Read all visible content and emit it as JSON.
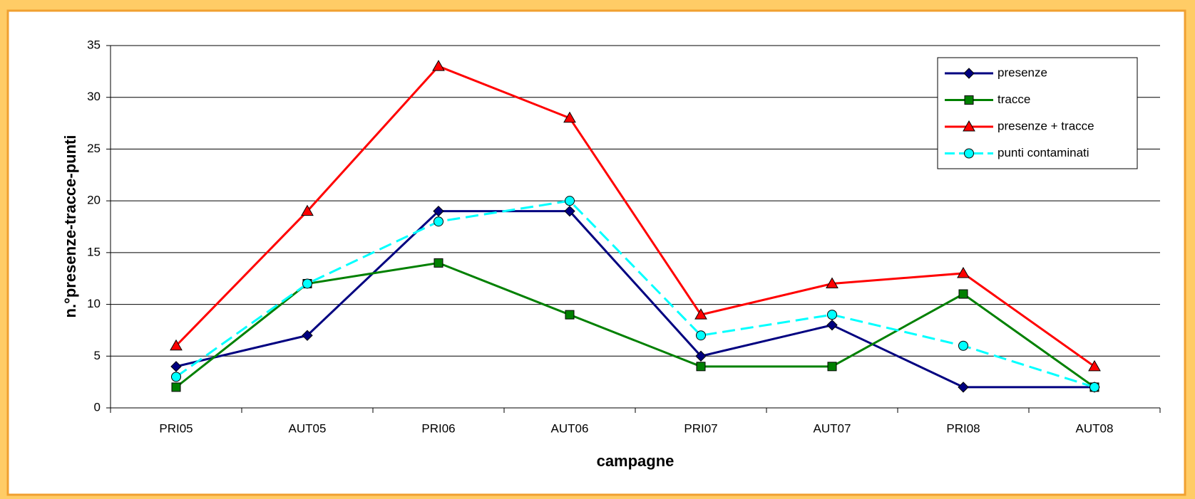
{
  "chart_data": {
    "type": "line",
    "categories": [
      "PRI05",
      "AUT05",
      "PRI06",
      "AUT06",
      "PRI07",
      "AUT07",
      "PRI08",
      "AUT08"
    ],
    "series": [
      {
        "name": "presenze",
        "color": "#000080",
        "marker": "diamond",
        "dashed": false,
        "values": [
          4,
          7,
          19,
          19,
          5,
          8,
          2,
          2
        ]
      },
      {
        "name": "tracce",
        "color": "#008000",
        "marker": "square",
        "dashed": false,
        "values": [
          2,
          12,
          14,
          9,
          4,
          4,
          11,
          2
        ]
      },
      {
        "name": "presenze + tracce",
        "color": "#ff0000",
        "marker": "triangle",
        "dashed": false,
        "values": [
          6,
          19,
          33,
          28,
          9,
          12,
          13,
          4
        ]
      },
      {
        "name": "punti contaminati",
        "color": "#00ffff",
        "marker": "circle",
        "dashed": true,
        "values": [
          3,
          12,
          18,
          20,
          7,
          9,
          6,
          2
        ]
      }
    ],
    "xlabel": "campagne",
    "ylabel": "n.°presenze-tracce-punti",
    "ylim": [
      0,
      35
    ],
    "yticks": [
      0,
      5,
      10,
      15,
      20,
      25,
      30,
      35
    ],
    "grid": true,
    "legend": "upper right"
  }
}
